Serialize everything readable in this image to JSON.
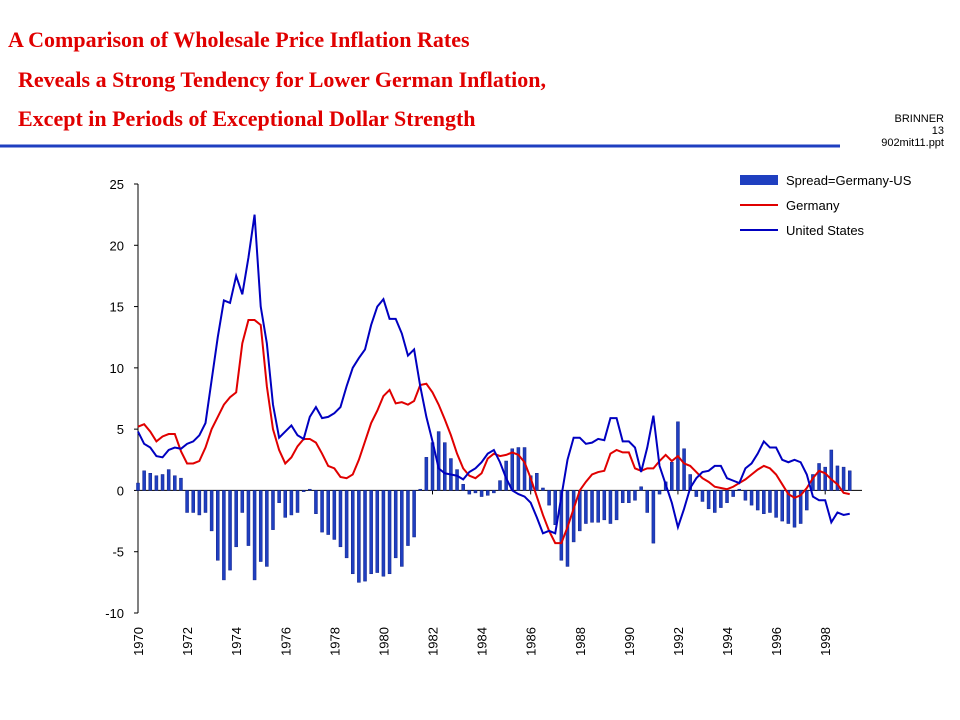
{
  "header": {
    "title_lines": [
      "A Comparison of Wholesale Price Inflation Rates",
      "Reveals a Strong Tendency for Lower German Inflation,",
      "Except in Periods of Exceptional Dollar Strength"
    ],
    "tag_lines": [
      "BRINNER",
      "13",
      "902mit11.ppt"
    ]
  },
  "chart_data": {
    "type": "bar_line",
    "x": [
      1970,
      1970.25,
      1970.5,
      1970.75,
      1971,
      1971.25,
      1971.5,
      1971.75,
      1972,
      1972.25,
      1972.5,
      1972.75,
      1973,
      1973.25,
      1973.5,
      1973.75,
      1974,
      1974.25,
      1974.5,
      1974.75,
      1975,
      1975.25,
      1975.5,
      1975.75,
      1976,
      1976.25,
      1976.5,
      1976.75,
      1977,
      1977.25,
      1977.5,
      1977.75,
      1978,
      1978.25,
      1978.5,
      1978.75,
      1979,
      1979.25,
      1979.5,
      1979.75,
      1980,
      1980.25,
      1980.5,
      1980.75,
      1981,
      1981.25,
      1981.5,
      1981.75,
      1982,
      1982.25,
      1982.5,
      1982.75,
      1983,
      1983.25,
      1983.5,
      1983.75,
      1984,
      1984.25,
      1984.5,
      1984.75,
      1985,
      1985.25,
      1985.5,
      1985.75,
      1986,
      1986.25,
      1986.5,
      1986.75,
      1987,
      1987.25,
      1987.5,
      1987.75,
      1988,
      1988.25,
      1988.5,
      1988.75,
      1989,
      1989.25,
      1989.5,
      1989.75,
      1990,
      1990.25,
      1990.5,
      1990.75,
      1991,
      1991.25,
      1991.5,
      1991.75,
      1992,
      1992.25,
      1992.5,
      1992.75,
      1993,
      1993.25,
      1993.5,
      1993.75,
      1994,
      1994.25,
      1994.5,
      1994.75,
      1995,
      1995.25,
      1995.5,
      1995.75,
      1996,
      1996.25,
      1996.5,
      1996.75,
      1997,
      1997.25,
      1997.5,
      1997.75,
      1998,
      1998.25,
      1998.5,
      1998.75,
      1999
    ],
    "series": [
      {
        "name": "Spread=Germany-US",
        "kind": "bar",
        "color": "#1f3fc0",
        "values": [
          0.6,
          1.6,
          1.4,
          1.2,
          1.3,
          1.7,
          1.2,
          1.0,
          -1.8,
          -1.8,
          -2.0,
          -1.8,
          -3.3,
          -5.7,
          -7.3,
          -6.5,
          -4.6,
          -1.8,
          -4.5,
          -7.3,
          -5.8,
          -6.2,
          -3.2,
          -1.0,
          -2.2,
          -2.0,
          -1.8,
          -0.1,
          0.1,
          -1.9,
          -3.4,
          -3.6,
          -4.0,
          -4.6,
          -5.5,
          -6.8,
          -7.5,
          -7.4,
          -6.8,
          -6.7,
          -7.0,
          -6.8,
          -5.5,
          -6.2,
          -4.5,
          -3.8,
          0.1,
          2.7,
          3.9,
          4.8,
          3.9,
          2.6,
          1.7,
          0.5,
          -0.3,
          -0.2,
          -0.5,
          -0.4,
          -0.2,
          0.8,
          2.4,
          3.4,
          3.5,
          3.5,
          1.2,
          1.4,
          0.2,
          -1.2,
          -2.8,
          -5.7,
          -6.2,
          -4.2,
          -3.3,
          -2.7,
          -2.6,
          -2.6,
          -2.4,
          -2.7,
          -2.4,
          -1.0,
          -1.0,
          -0.8,
          0.3,
          -1.8,
          -4.3,
          -0.3,
          0.7,
          2.3,
          5.6,
          3.4,
          1.3,
          -0.5,
          -0.9,
          -1.5,
          -1.8,
          -1.4,
          -1.0,
          -0.5,
          0.1,
          -0.8,
          -1.2,
          -1.6,
          -1.9,
          -1.8,
          -2.2,
          -2.5,
          -2.7,
          -3.0,
          -2.7,
          -1.6,
          1.3,
          2.2,
          1.9,
          3.3,
          2.0,
          1.9,
          1.6
        ]
      },
      {
        "name": "Germany",
        "kind": "line",
        "color": "#e00000",
        "values": [
          5.2,
          5.4,
          4.8,
          4.0,
          4.4,
          4.6,
          4.6,
          3.2,
          2.2,
          2.2,
          2.4,
          3.5,
          5.0,
          6.0,
          7.0,
          7.6,
          8.0,
          12,
          13.9,
          13.9,
          13.5,
          8.5,
          5.0,
          3.3,
          2.2,
          2.7,
          3.6,
          4.2,
          4.2,
          3.9,
          3.0,
          2.0,
          1.8,
          1.1,
          1.0,
          1.3,
          2.5,
          4.0,
          5.5,
          6.5,
          7.7,
          8.2,
          7.1,
          7.2,
          7.0,
          7.3,
          8.6,
          8.7,
          8.0,
          7.0,
          5.8,
          4.5,
          3.0,
          1.8,
          1.2,
          1.0,
          1.4,
          2.6,
          3.0,
          2.8,
          2.9,
          3.1,
          2.9,
          2.3,
          1.0,
          -0.5,
          -2.0,
          -3.3,
          -4.3,
          -4.3,
          -3.0,
          -1.5,
          0.0,
          0.7,
          1.3,
          1.5,
          1.6,
          3.0,
          3.3,
          3.1,
          3.1,
          1.8,
          1.6,
          1.8,
          1.8,
          2.4,
          2.9,
          2.4,
          2.8,
          2.2,
          2.0,
          1.5,
          1.0,
          0.7,
          0.3,
          0.2,
          0.1,
          0.3,
          0.6,
          0.9,
          1.3,
          1.7,
          2.0,
          1.8,
          1.3,
          0.5,
          -0.3,
          -0.6,
          -0.4,
          0.2,
          1.0,
          1.6,
          1.4,
          0.9,
          0.5,
          -0.2,
          -0.3
        ]
      },
      {
        "name": "United States",
        "kind": "line",
        "color": "#0000c0",
        "values": [
          4.8,
          3.8,
          3.5,
          2.8,
          2.7,
          3.3,
          3.5,
          3.4,
          3.8,
          4.0,
          4.5,
          5.5,
          9.0,
          12.5,
          15.5,
          15.3,
          17.5,
          16,
          19,
          22.5,
          15,
          12,
          7,
          4.3,
          4.8,
          5.3,
          4.5,
          4.2,
          6.0,
          6.8,
          5.9,
          6.0,
          6.3,
          6.8,
          8.5,
          10,
          10.8,
          11.5,
          13.5,
          15,
          15.6,
          14,
          14,
          12.8,
          11.0,
          11.5,
          8.5,
          6.0,
          4.0,
          1.8,
          1.4,
          1.3,
          1.2,
          0.9,
          1.5,
          1.8,
          2.3,
          3.0,
          3.3,
          2.3,
          1.0,
          0.0,
          -0.3,
          -0.5,
          -1.0,
          -2.2,
          -3.5,
          -3.3,
          -3.5,
          -0.5,
          2.5,
          4.3,
          4.3,
          3.8,
          3.9,
          4.2,
          4.1,
          5.9,
          5.9,
          4.0,
          4.0,
          3.5,
          1.5,
          3.5,
          6.1,
          2.0,
          0.5,
          -1.0,
          -3.0,
          -1.5,
          0.2,
          1.0,
          1.5,
          1.6,
          2.0,
          2.0,
          1.0,
          0.8,
          0.6,
          1.8,
          2.2,
          3.0,
          4.0,
          3.5,
          3.5,
          2.5,
          2.3,
          2.5,
          2.3,
          1.3,
          -0.5,
          -0.8,
          -0.8,
          -2.6,
          -1.8,
          -2.0,
          -1.9
        ]
      }
    ],
    "xlim": [
      1970,
      1999.5
    ],
    "xticks": [
      1970,
      1972,
      1974,
      1976,
      1978,
      1980,
      1982,
      1984,
      1986,
      1988,
      1990,
      1992,
      1994,
      1996,
      1998
    ],
    "ylim": [
      -10,
      25
    ],
    "yticks": [
      -10,
      -5,
      0,
      5,
      10,
      15,
      20,
      25
    ],
    "legend": "top-right"
  }
}
